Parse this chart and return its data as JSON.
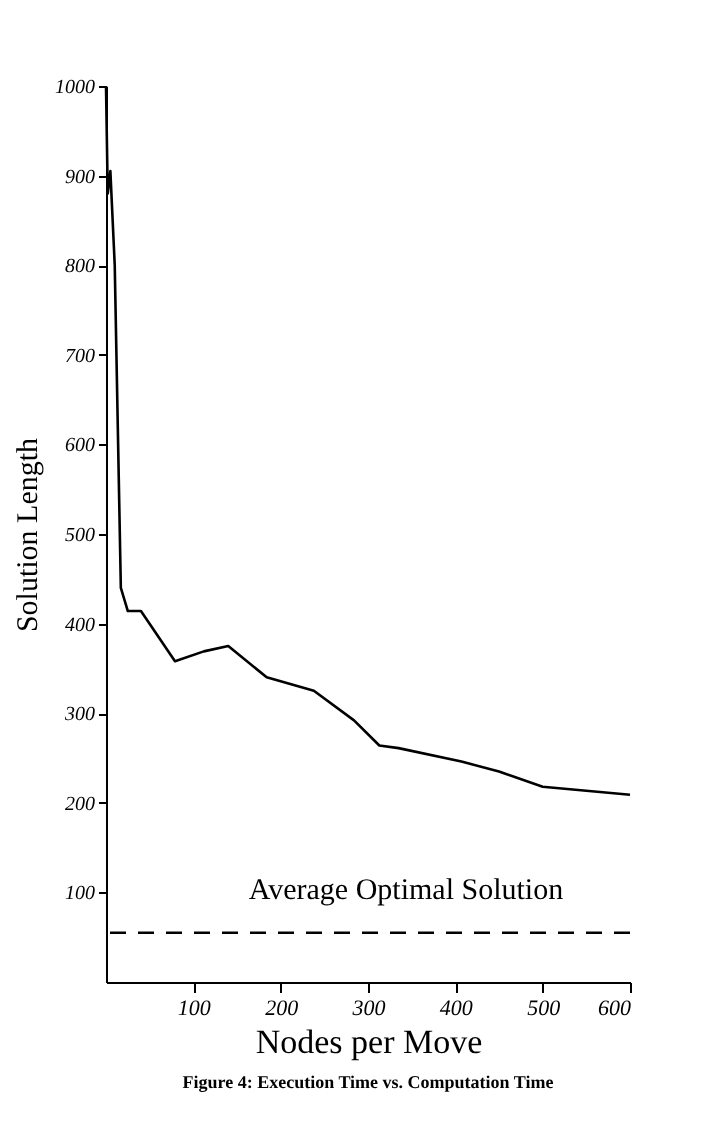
{
  "chart_data": {
    "type": "line",
    "title": "Figure 4: Execution Time vs. Computation Time",
    "xlabel": "Nodes per Move",
    "ylabel": "Solution Length",
    "x": [
      0,
      2,
      5,
      10,
      17,
      25,
      40,
      79,
      112,
      140,
      184,
      238,
      284,
      313,
      335,
      407,
      450,
      500,
      600
    ],
    "series": [
      {
        "color": "#000000",
        "values": [
          1000,
          880,
          905,
          800,
          440,
          414,
          414,
          358,
          369,
          375,
          340,
          325,
          292,
          264,
          261,
          246,
          235,
          218,
          209
        ]
      }
    ],
    "xlim": [
      0,
      600
    ],
    "xticks": [
      100,
      200,
      300,
      400,
      500,
      600
    ],
    "ylim": [
      0,
      1000
    ],
    "yticks": [
      100,
      200,
      300,
      400,
      500,
      600,
      700,
      800,
      900,
      1000
    ],
    "ref_lines": [
      {
        "axis": "y",
        "value": 55,
        "label": "Average Optimal Solution",
        "color": "#000000",
        "line_style": "dashed"
      }
    ],
    "grid": false,
    "marker": "none",
    "line_style": "solid"
  }
}
